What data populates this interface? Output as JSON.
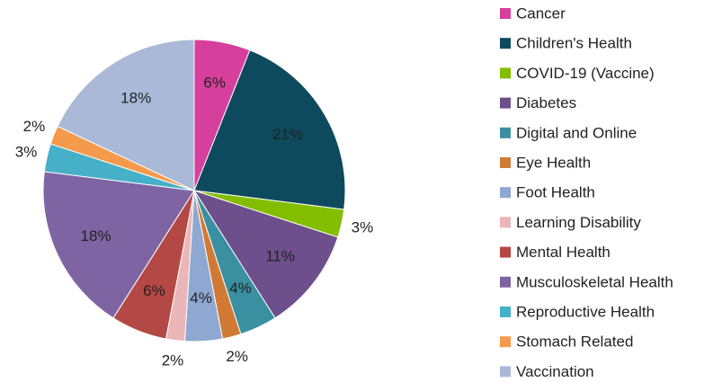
{
  "chart_data": {
    "type": "pie",
    "categories": [
      "Cancer",
      "Children's Health",
      "COVID-19 (Vaccine)",
      "Diabetes",
      "Digital and Online",
      "Eye Health",
      "Foot Health",
      "Learning Disability",
      "Mental Health",
      "Musculoskeletal Health",
      "Reproductive Health",
      "Stomach Related",
      "Vaccination"
    ],
    "values": [
      6,
      21,
      3,
      11,
      4,
      2,
      4,
      2,
      6,
      18,
      3,
      2,
      18
    ],
    "value_labels": [
      "6%",
      "21%",
      "3%",
      "11%",
      "4%",
      "2%",
      "4%",
      "2%",
      "6%",
      "18%",
      "3%",
      "2%",
      "18%"
    ],
    "colors": [
      "#d63f9b",
      "#0e4a5e",
      "#84bd00",
      "#6d4f8c",
      "#3a8fa0",
      "#d07a35",
      "#8fa8d1",
      "#ebb6b8",
      "#b44845",
      "#7f64a3",
      "#45b0c8",
      "#f59a4a",
      "#a9b9d7"
    ],
    "legend": "right"
  }
}
